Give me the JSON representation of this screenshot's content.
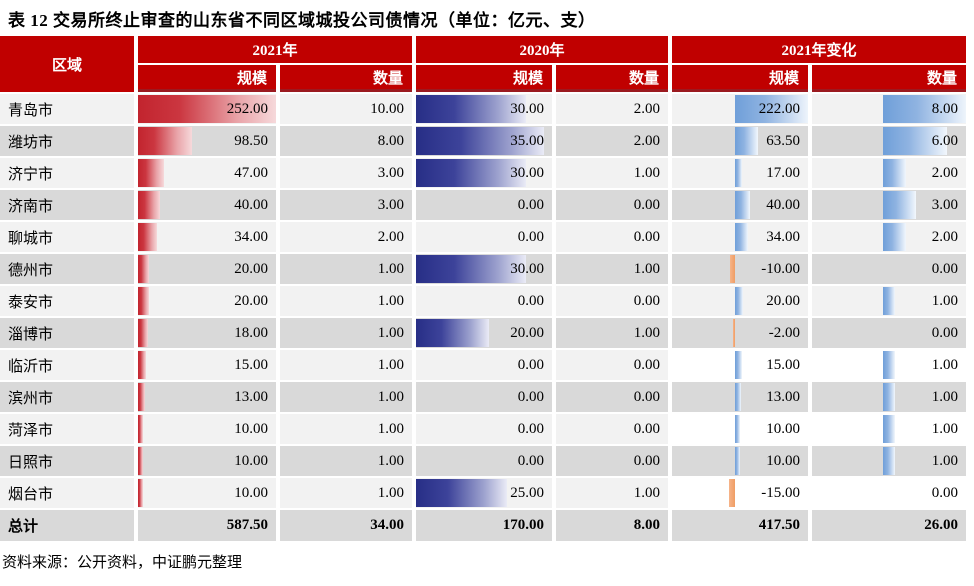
{
  "title": "表 12 交易所终止审查的山东省不同区域城投公司债情况（单位：亿元、支）",
  "source_note": "资料来源：公开资料，中证鹏元整理",
  "colors": {
    "header_bg": "#c00000",
    "header_underline": "#9b1a20",
    "row_light": "#f2f2f2",
    "row_dark": "#d9d9d9",
    "row_white": "#ffffff",
    "bar_red": "#c2242e",
    "bar_navy": "#272e86",
    "bar_blue": "#6f9fd9",
    "bar_negative_orange": "#ef9d64"
  },
  "table": {
    "region_header": "区域",
    "groups": [
      {
        "label": "2021年"
      },
      {
        "label": "2020年"
      },
      {
        "label": "2021年变化"
      }
    ],
    "sub_headers": [
      "规模",
      "数量"
    ],
    "rows": [
      {
        "region": "青岛市",
        "values": [
          "252.00",
          "10.00",
          "30.00",
          "2.00",
          "222.00",
          "8.00"
        ]
      },
      {
        "region": "潍坊市",
        "values": [
          "98.50",
          "8.00",
          "35.00",
          "2.00",
          "63.50",
          "6.00"
        ]
      },
      {
        "region": "济宁市",
        "values": [
          "47.00",
          "3.00",
          "30.00",
          "1.00",
          "17.00",
          "2.00"
        ]
      },
      {
        "region": "济南市",
        "values": [
          "40.00",
          "3.00",
          "0.00",
          "0.00",
          "40.00",
          "3.00"
        ]
      },
      {
        "region": "聊城市",
        "values": [
          "34.00",
          "2.00",
          "0.00",
          "0.00",
          "34.00",
          "2.00"
        ]
      },
      {
        "region": "德州市",
        "values": [
          "20.00",
          "1.00",
          "30.00",
          "1.00",
          "-10.00",
          "0.00"
        ]
      },
      {
        "region": "泰安市",
        "values": [
          "20.00",
          "1.00",
          "0.00",
          "0.00",
          "20.00",
          "1.00"
        ]
      },
      {
        "region": "淄博市",
        "values": [
          "18.00",
          "1.00",
          "20.00",
          "1.00",
          "-2.00",
          "0.00"
        ]
      },
      {
        "region": "临沂市",
        "values": [
          "15.00",
          "1.00",
          "0.00",
          "0.00",
          "15.00",
          "1.00"
        ],
        "change_cells_bg": "#ffffff"
      },
      {
        "region": "滨州市",
        "values": [
          "13.00",
          "1.00",
          "0.00",
          "0.00",
          "13.00",
          "1.00"
        ]
      },
      {
        "region": "菏泽市",
        "values": [
          "10.00",
          "1.00",
          "0.00",
          "0.00",
          "10.00",
          "1.00"
        ],
        "change_cells_bg": "#ffffff"
      },
      {
        "region": "日照市",
        "values": [
          "10.00",
          "1.00",
          "0.00",
          "0.00",
          "10.00",
          "1.00"
        ]
      },
      {
        "region": "烟台市",
        "values": [
          "10.00",
          "1.00",
          "25.00",
          "1.00",
          "-15.00",
          "0.00"
        ],
        "change_cells_bg": "#ffffff"
      }
    ],
    "total_row": {
      "label": "总计",
      "values": [
        "587.50",
        "34.00",
        "170.00",
        "8.00",
        "417.50",
        "26.00"
      ]
    }
  }
}
